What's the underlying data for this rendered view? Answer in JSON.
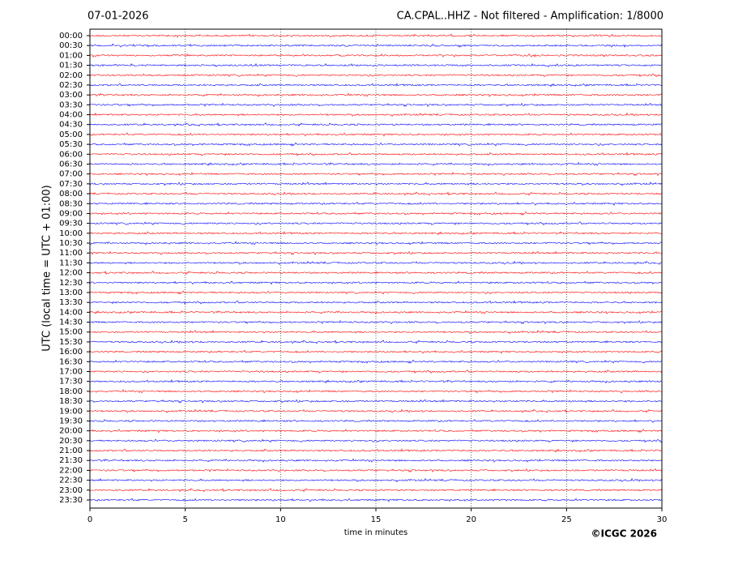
{
  "chart_data": {
    "type": "helicorder",
    "title": "07-01-2026",
    "subtitle": "CA.CPAL..HHZ - Not filtered - Amplification: 1/8000",
    "xlabel": "time in minutes",
    "ylabel": "UTC (local time = UTC + 01:00)",
    "credit": "©ICGC 2026",
    "xlim": [
      0,
      30
    ],
    "xticks": [
      0,
      5,
      10,
      15,
      20,
      25,
      30
    ],
    "grid": true,
    "colors": [
      "#ff0000",
      "#0000ff"
    ],
    "categories": [
      "00:00",
      "00:30",
      "01:00",
      "01:30",
      "02:00",
      "02:30",
      "03:00",
      "03:30",
      "04:00",
      "04:30",
      "05:00",
      "05:30",
      "06:00",
      "06:30",
      "07:00",
      "07:30",
      "08:00",
      "08:30",
      "09:00",
      "09:30",
      "10:00",
      "10:30",
      "11:00",
      "11:30",
      "12:00",
      "12:30",
      "13:00",
      "13:30",
      "14:00",
      "14:30",
      "15:00",
      "15:30",
      "16:00",
      "16:30",
      "17:00",
      "17:30",
      "18:00",
      "18:30",
      "19:00",
      "19:30",
      "20:00",
      "20:30",
      "21:00",
      "21:30",
      "22:00",
      "22:30",
      "23:00",
      "23:30"
    ]
  }
}
